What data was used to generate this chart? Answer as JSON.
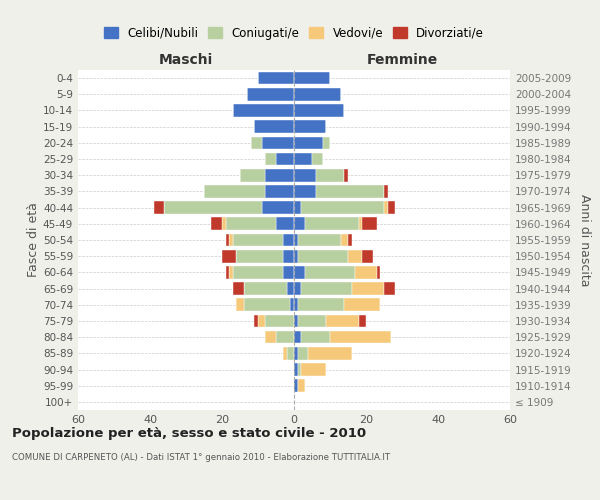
{
  "age_groups": [
    "100+",
    "95-99",
    "90-94",
    "85-89",
    "80-84",
    "75-79",
    "70-74",
    "65-69",
    "60-64",
    "55-59",
    "50-54",
    "45-49",
    "40-44",
    "35-39",
    "30-34",
    "25-29",
    "20-24",
    "15-19",
    "10-14",
    "5-9",
    "0-4"
  ],
  "birth_years": [
    "≤ 1909",
    "1910-1914",
    "1915-1919",
    "1920-1924",
    "1925-1929",
    "1930-1934",
    "1935-1939",
    "1940-1944",
    "1945-1949",
    "1950-1954",
    "1955-1959",
    "1960-1964",
    "1965-1969",
    "1970-1974",
    "1975-1979",
    "1980-1984",
    "1985-1989",
    "1990-1994",
    "1995-1999",
    "2000-2004",
    "2005-2009"
  ],
  "male": {
    "celibi": [
      0,
      0,
      0,
      0,
      0,
      0,
      1,
      2,
      3,
      3,
      3,
      5,
      9,
      8,
      8,
      5,
      9,
      11,
      17,
      13,
      10
    ],
    "coniugati": [
      0,
      0,
      0,
      2,
      5,
      8,
      13,
      12,
      14,
      13,
      14,
      14,
      27,
      17,
      7,
      3,
      3,
      0,
      0,
      0,
      0
    ],
    "vedovi": [
      0,
      0,
      0,
      1,
      3,
      2,
      2,
      0,
      1,
      0,
      1,
      1,
      0,
      0,
      0,
      0,
      0,
      0,
      0,
      0,
      0
    ],
    "divorziati": [
      0,
      0,
      0,
      0,
      0,
      1,
      0,
      3,
      1,
      4,
      1,
      3,
      3,
      0,
      0,
      0,
      0,
      0,
      0,
      0,
      0
    ]
  },
  "female": {
    "nubili": [
      0,
      1,
      1,
      1,
      2,
      1,
      1,
      2,
      3,
      1,
      1,
      3,
      2,
      6,
      6,
      5,
      8,
      9,
      14,
      13,
      10
    ],
    "coniugate": [
      0,
      0,
      1,
      3,
      8,
      8,
      13,
      14,
      14,
      14,
      12,
      15,
      23,
      19,
      8,
      3,
      2,
      0,
      0,
      0,
      0
    ],
    "vedove": [
      0,
      2,
      7,
      12,
      17,
      9,
      10,
      9,
      6,
      4,
      2,
      1,
      1,
      0,
      0,
      0,
      0,
      0,
      0,
      0,
      0
    ],
    "divorziate": [
      0,
      0,
      0,
      0,
      0,
      2,
      0,
      3,
      1,
      3,
      1,
      4,
      2,
      1,
      1,
      0,
      0,
      0,
      0,
      0,
      0
    ]
  },
  "colors": {
    "celibi": "#4472c4",
    "coniugati": "#b8cfa0",
    "vedovi": "#f5c87a",
    "divorziati": "#c0392b"
  },
  "xlim": 60,
  "title": "Popolazione per età, sesso e stato civile - 2010",
  "subtitle": "COMUNE DI CARPENETO (AL) - Dati ISTAT 1° gennaio 2010 - Elaborazione TUTTITALIA.IT",
  "ylabel_left": "Fasce di età",
  "ylabel_right": "Anni di nascita",
  "label_maschi": "Maschi",
  "label_femmine": "Femmine",
  "legend_labels": [
    "Celibi/Nubili",
    "Coniugati/e",
    "Vedovi/e",
    "Divorziati/e"
  ],
  "bg_color": "#f0f0eb",
  "plot_bg_color": "#ffffff"
}
